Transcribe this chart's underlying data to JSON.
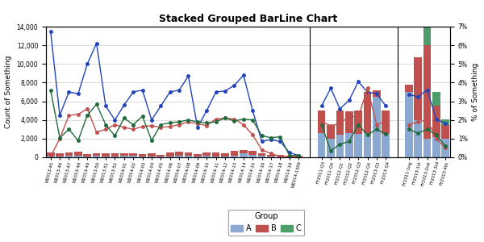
{
  "title": "Stacked Grouped BarLine Chart",
  "ylabel_left": "Count of Something",
  "ylabel_right": "% of Something",
  "ylim_left": [
    0,
    14000
  ],
  "ylim_right": [
    0,
    0.07
  ],
  "yticks_left": [
    0,
    2000,
    4000,
    6000,
    8000,
    10000,
    12000,
    14000
  ],
  "yticks_right": [
    0,
    0.01,
    0.02,
    0.03,
    0.04,
    0.05,
    0.06,
    0.07
  ],
  "color_A": "#8BA8D0",
  "color_B": "#C0504D",
  "color_C": "#4E9E6B",
  "color_line_blue": "#2244BB",
  "color_line_red": "#C0504D",
  "color_line_green": "#1E6B3C",
  "background": "#FFFFFF",
  "grid_color": "#CCCCCC",
  "categories_W": [
    "W2013-45",
    "W2013-46",
    "W2013-47",
    "W2013-48",
    "W2013-49",
    "W2013-50",
    "W2013-51",
    "W2013-52",
    "W2014-01",
    "W2014-02",
    "W2014-03",
    "W2014-04",
    "W2014-05",
    "W2014-06",
    "W2014-07",
    "W2014-08",
    "W2014-09",
    "W2014-10",
    "W2014-11",
    "W2014-12",
    "W2014-13",
    "W2014-14",
    "W2014-15",
    "W2014-16",
    "W2014-17",
    "W2014-18",
    "W2014-19",
    "W2014-1309"
  ],
  "A_W": [
    150,
    100,
    130,
    160,
    100,
    130,
    100,
    80,
    180,
    130,
    110,
    90,
    110,
    90,
    130,
    180,
    90,
    130,
    110,
    90,
    180,
    450,
    220,
    130,
    90,
    90,
    50,
    30
  ],
  "B_W": [
    350,
    300,
    400,
    450,
    270,
    270,
    300,
    350,
    270,
    300,
    270,
    300,
    170,
    450,
    450,
    300,
    270,
    350,
    400,
    300,
    550,
    300,
    450,
    300,
    170,
    130,
    80,
    120
  ],
  "C_W": [
    0,
    0,
    0,
    0,
    0,
    0,
    0,
    0,
    0,
    0,
    0,
    0,
    0,
    0,
    0,
    0,
    0,
    0,
    0,
    0,
    0,
    0,
    0,
    0,
    0,
    0,
    0,
    0
  ],
  "line_blue_W": [
    13500,
    4500,
    7000,
    6800,
    10000,
    12200,
    5500,
    4000,
    5600,
    7000,
    7200,
    4000,
    5500,
    7000,
    7200,
    8700,
    3200,
    5000,
    7000,
    7100,
    7700,
    8800,
    5000,
    1700,
    1900,
    1700,
    500,
    200
  ],
  "line_red_W": [
    50,
    2000,
    4500,
    4600,
    5200,
    2700,
    3000,
    3500,
    3200,
    3000,
    3300,
    3400,
    3200,
    3300,
    3500,
    3800,
    3600,
    3400,
    4100,
    4200,
    4100,
    3500,
    2400,
    800,
    400,
    100,
    50,
    100
  ],
  "line_green_W": [
    7200,
    2100,
    3000,
    1800,
    4500,
    5700,
    3500,
    2300,
    4200,
    3500,
    4400,
    1800,
    3500,
    3700,
    3800,
    4000,
    3800,
    3700,
    3800,
    4200,
    3900,
    4100,
    4000,
    2300,
    2100,
    2200,
    200,
    200
  ],
  "categories_FY11": [
    "FY2011-Q3",
    "FY2011-Q4",
    "FY2012-Q1",
    "FY2012-Q2",
    "FY2012-Q3",
    "FY2012-Q4",
    "FY2013-Q1",
    "FY2013-Q4"
  ],
  "A_FY11": [
    2600,
    2000,
    2400,
    2600,
    2500,
    2600,
    6500,
    2500
  ],
  "B_FY11": [
    2400,
    1500,
    2600,
    2300,
    2500,
    4400,
    700,
    2500
  ],
  "C_FY11": [
    0,
    0,
    0,
    0,
    0,
    0,
    0,
    0
  ],
  "line_blue_FY11": [
    5500,
    7400,
    5200,
    6100,
    8100,
    7000,
    6800,
    5500
  ],
  "line_red_FY11": [
    3800,
    3400,
    3600,
    4400,
    4300,
    7400,
    3500,
    3800
  ],
  "line_green_FY11": [
    3500,
    700,
    1400,
    1700,
    3500,
    2400,
    3000,
    2500
  ],
  "categories_FY13": [
    "FY2011-1ng",
    "FY2013-1st",
    "FY2013-2nd",
    "FY2013-3rd",
    "FY2013-4th"
  ],
  "A_FY13": [
    7000,
    4000,
    2000,
    2200,
    2000
  ],
  "B_FY13": [
    750,
    6700,
    10000,
    3300,
    1500
  ],
  "C_FY13": [
    0,
    0,
    5800,
    1500,
    600
  ],
  "line_blue_FY13": [
    6700,
    6500,
    7200,
    4100,
    3600
  ],
  "line_red_FY13": [
    3500,
    3800,
    4000,
    2000,
    1000
  ],
  "line_green_FY13": [
    3000,
    2600,
    3000,
    2400,
    1200
  ]
}
